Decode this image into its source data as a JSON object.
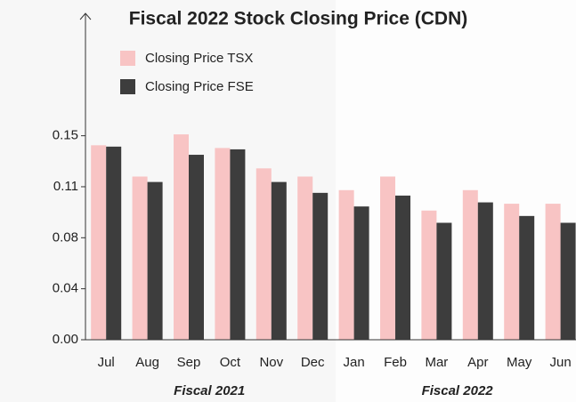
{
  "chart_data": {
    "type": "bar",
    "title": "Fiscal 2022 Stock Closing Price (CDN)",
    "categories": [
      "Jul",
      "Aug",
      "Sep",
      "Oct",
      "Nov",
      "Dec",
      "Jan",
      "Feb",
      "Mar",
      "Apr",
      "May",
      "Jun"
    ],
    "group_labels": [
      "Fiscal 2021",
      "Fiscal 2022"
    ],
    "series": [
      {
        "name": "Closing Price TSX",
        "color": "#f8c4c4",
        "values": [
          0.143,
          0.12,
          0.151,
          0.141,
          0.126,
          0.12,
          0.11,
          0.12,
          0.095,
          0.11,
          0.1,
          0.1
        ]
      },
      {
        "name": "Closing Price FSE",
        "color": "#3d3d3d",
        "values": [
          0.142,
          0.116,
          0.136,
          0.14,
          0.116,
          0.108,
          0.098,
          0.106,
          0.086,
          0.101,
          0.091,
          0.086
        ]
      }
    ],
    "ylim": [
      0,
      0.24
    ],
    "yticks": [
      {
        "value": 0,
        "label": "0.00"
      },
      {
        "value": 0.0375,
        "label": "0.04"
      },
      {
        "value": 0.075,
        "label": "0.08"
      },
      {
        "value": 0.1125,
        "label": "0.11"
      },
      0.15
    ],
    "legend": "top-left"
  }
}
